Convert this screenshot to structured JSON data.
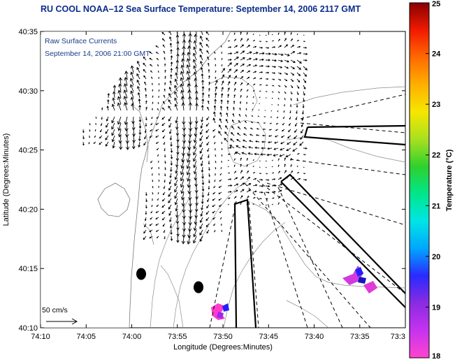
{
  "title": "RU COOL  NOAA–12  Sea Surface Temperature:  September 14, 2006 2117 GMT",
  "annotation_line1": "Raw Surface Currents",
  "annotation_line2": "September 14, 2006 21:00 GMT",
  "x_axis": {
    "label": "Longitude (Degrees:Minutes)",
    "ticks": [
      "74:10",
      "74:05",
      "74:00",
      "73:55",
      "73:50",
      "73:45",
      "73:40",
      "73:35",
      "73:3"
    ]
  },
  "y_axis": {
    "label": "Latitude (Degrees:Minutes)",
    "ticks": [
      "40:35",
      "40:30",
      "40:25",
      "40:20",
      "40:15",
      "40:10"
    ]
  },
  "scale": {
    "label": "50 cm/s"
  },
  "colorbar": {
    "label": "Temperature (°C)",
    "ticks": [
      "25",
      "24",
      "23",
      "22",
      "21",
      "20",
      "19",
      "18"
    ],
    "min": 18,
    "max": 25,
    "colors": [
      "#ff44cc",
      "#c633f0",
      "#8a2be2",
      "#2a2aff",
      "#00a6ff",
      "#00e5e5",
      "#00e68a",
      "#2ed12e",
      "#a8e020",
      "#f5e600",
      "#ffb000",
      "#ff6a00",
      "#f01a00",
      "#8a0000"
    ]
  }
}
